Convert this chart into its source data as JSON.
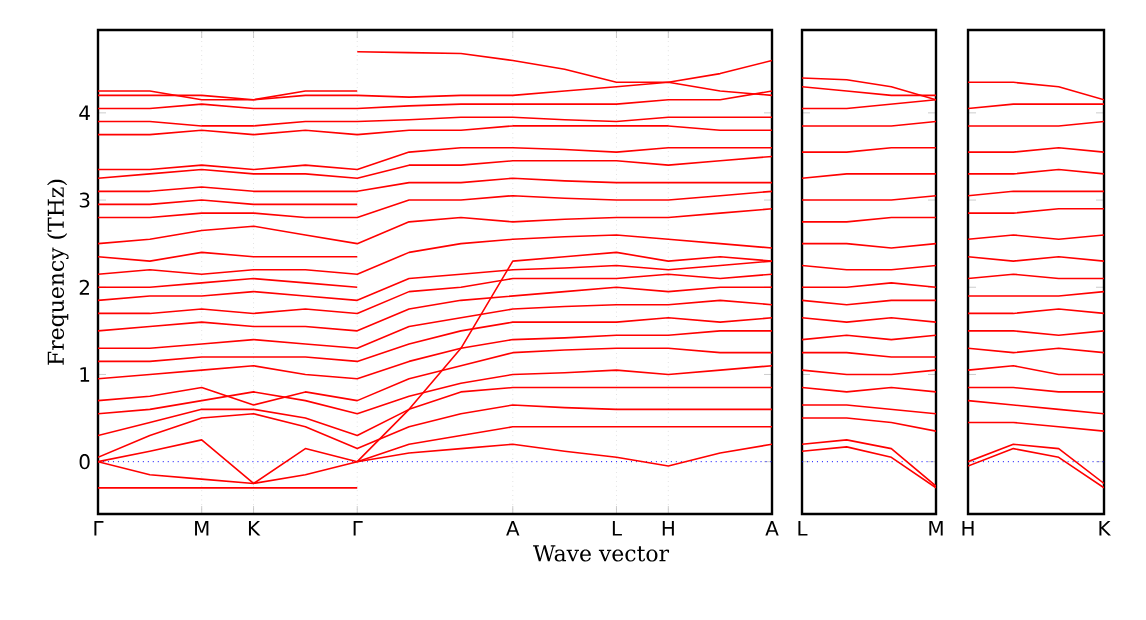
{
  "chart_data": [
    {
      "type": "line",
      "xlabel": "Wave vector",
      "ylabel": "Frequency (THz)",
      "color": "#ff0000",
      "grid": "x",
      "categories": [
        "Γ",
        null,
        "M",
        "K",
        null,
        "Γ",
        null,
        null,
        "A",
        null,
        "L",
        "H",
        null,
        "A"
      ],
      "ylim": [
        -0.6,
        4.95
      ],
      "yticks": [
        0,
        1,
        2,
        3,
        4
      ],
      "ref_lines": [
        {
          "axis": "y",
          "value": 0,
          "color": "#0000ff",
          "line_style": "dotted"
        }
      ],
      "series": [
        {
          "values": [
            -0.3,
            -0.3,
            -0.3,
            -0.3,
            -0.3,
            -0.3,
            null,
            null,
            null,
            null,
            null,
            null,
            null,
            null
          ]
        },
        {
          "values": [
            2.0,
            2.0,
            2.05,
            2.1,
            2.05,
            2.0,
            null,
            null,
            null,
            null,
            null,
            null,
            null,
            null
          ]
        },
        {
          "values": [
            2.35,
            2.3,
            2.4,
            2.35,
            2.35,
            2.35,
            null,
            null,
            null,
            null,
            null,
            null,
            null,
            null
          ]
        },
        {
          "values": [
            2.95,
            2.95,
            3.0,
            2.95,
            2.95,
            2.95,
            null,
            null,
            null,
            null,
            null,
            null,
            null,
            null
          ]
        },
        {
          "values": [
            4.25,
            4.25,
            4.15,
            4.15,
            4.25,
            4.25,
            null,
            null,
            null,
            null,
            null,
            null,
            null,
            null
          ]
        },
        {
          "values": [
            0,
            -0.15,
            -0.2,
            -0.25,
            -0.15,
            0,
            0.1,
            0.15,
            0.2,
            0.12,
            0.05,
            -0.05,
            0.1,
            0.2
          ]
        },
        {
          "values": [
            0,
            0.12,
            0.25,
            -0.25,
            0.15,
            0,
            0.2,
            0.3,
            0.4,
            0.4,
            0.4,
            0.4,
            0.4,
            0.4
          ]
        },
        {
          "values": [
            0.05,
            0.3,
            0.5,
            0.55,
            0.4,
            0.15,
            0.4,
            0.55,
            0.65,
            0.62,
            0.6,
            0.6,
            0.6,
            0.6
          ]
        },
        {
          "values": [
            0.3,
            0.45,
            0.6,
            0.6,
            0.5,
            0.3,
            0.6,
            0.8,
            0.85,
            0.85,
            0.85,
            0.85,
            0.85,
            0.85
          ]
        },
        {
          "values": [
            0.55,
            0.6,
            0.7,
            0.8,
            0.7,
            0.55,
            0.75,
            0.9,
            1.0,
            1.02,
            1.05,
            1.0,
            1.05,
            1.1
          ]
        },
        {
          "values": [
            0.7,
            0.75,
            0.85,
            0.65,
            0.8,
            0.7,
            0.95,
            1.1,
            1.25,
            1.28,
            1.3,
            1.3,
            1.25,
            1.25
          ]
        },
        {
          "values": [
            0.95,
            1.0,
            1.05,
            1.1,
            1.0,
            0.95,
            1.15,
            1.3,
            1.4,
            1.42,
            1.45,
            1.45,
            1.5,
            1.5
          ]
        },
        {
          "values": [
            1.15,
            1.15,
            1.2,
            1.2,
            1.2,
            1.15,
            1.35,
            1.5,
            1.6,
            1.6,
            1.6,
            1.65,
            1.6,
            1.65
          ]
        },
        {
          "values": [
            1.3,
            1.3,
            1.35,
            1.4,
            1.35,
            1.3,
            1.55,
            1.65,
            1.75,
            1.78,
            1.8,
            1.8,
            1.85,
            1.8
          ]
        },
        {
          "values": [
            1.5,
            1.55,
            1.6,
            1.55,
            1.55,
            1.5,
            1.75,
            1.85,
            1.9,
            1.95,
            2.0,
            1.95,
            2.0,
            2.0
          ]
        },
        {
          "values": [
            1.7,
            1.7,
            1.75,
            1.7,
            1.75,
            1.7,
            1.95,
            2.0,
            2.1,
            2.1,
            2.1,
            2.15,
            2.1,
            2.15
          ]
        },
        {
          "values": [
            1.85,
            1.9,
            1.9,
            1.95,
            1.9,
            1.85,
            2.1,
            2.15,
            2.2,
            2.22,
            2.25,
            2.2,
            2.25,
            2.3
          ]
        },
        {
          "values": [
            2.15,
            2.2,
            2.15,
            2.2,
            2.2,
            2.15,
            2.4,
            2.5,
            2.55,
            2.58,
            2.6,
            2.55,
            2.5,
            2.45
          ]
        },
        {
          "values": [
            2.5,
            2.55,
            2.65,
            2.7,
            2.6,
            2.5,
            2.75,
            2.8,
            2.75,
            2.78,
            2.8,
            2.8,
            2.85,
            2.9
          ]
        },
        {
          "values": [
            2.8,
            2.8,
            2.85,
            2.85,
            2.8,
            2.8,
            3.0,
            3.0,
            3.05,
            3.02,
            3.0,
            3.0,
            3.05,
            3.1
          ]
        },
        {
          "values": [
            3.1,
            3.1,
            3.15,
            3.1,
            3.1,
            3.1,
            3.2,
            3.2,
            3.25,
            3.22,
            3.2,
            3.2,
            3.2,
            3.2
          ]
        },
        {
          "values": [
            3.25,
            3.3,
            3.35,
            3.3,
            3.3,
            3.25,
            3.4,
            3.4,
            3.45,
            3.45,
            3.45,
            3.4,
            3.45,
            3.5
          ]
        },
        {
          "values": [
            3.35,
            3.35,
            3.4,
            3.35,
            3.4,
            3.35,
            3.55,
            3.6,
            3.6,
            3.58,
            3.55,
            3.6,
            3.6,
            3.6
          ]
        },
        {
          "values": [
            3.75,
            3.75,
            3.8,
            3.75,
            3.8,
            3.75,
            3.8,
            3.8,
            3.85,
            3.85,
            3.85,
            3.85,
            3.8,
            3.8
          ]
        },
        {
          "values": [
            3.9,
            3.9,
            3.85,
            3.85,
            3.9,
            3.9,
            3.92,
            3.95,
            3.95,
            3.92,
            3.9,
            3.95,
            3.95,
            3.95
          ]
        },
        {
          "values": [
            4.05,
            4.05,
            4.1,
            4.05,
            4.05,
            4.05,
            4.08,
            4.1,
            4.1,
            4.1,
            4.1,
            4.15,
            4.15,
            4.25
          ]
        },
        {
          "values": [
            4.2,
            4.2,
            4.2,
            4.15,
            4.2,
            4.2,
            4.18,
            4.2,
            4.2,
            4.25,
            4.3,
            4.35,
            4.25,
            4.2
          ]
        },
        {
          "values": [
            null,
            null,
            null,
            null,
            null,
            4.7,
            4.69,
            4.68,
            4.6,
            4.5,
            4.35,
            4.35,
            4.45,
            4.6
          ]
        },
        {
          "values": [
            null,
            null,
            null,
            null,
            null,
            0,
            0.6,
            1.3,
            2.3,
            2.35,
            2.4,
            2.3,
            2.35,
            2.3
          ]
        }
      ]
    },
    {
      "type": "line",
      "color": "#ff0000",
      "tick_labels": "x",
      "categories": [
        "L",
        null,
        null,
        "M"
      ],
      "ylim": [
        -0.6,
        4.95
      ],
      "yticks": [
        0,
        1,
        2,
        3,
        4
      ],
      "ref_lines": [
        {
          "axis": "y",
          "value": 0,
          "color": "#0000ff",
          "line_style": "dotted"
        }
      ],
      "series": [
        {
          "values": [
            0.2,
            0.25,
            0.15,
            -0.28
          ]
        },
        {
          "values": [
            0.12,
            0.17,
            0.05,
            -0.3
          ]
        },
        {
          "values": [
            0.5,
            0.5,
            0.45,
            0.35
          ]
        },
        {
          "values": [
            0.65,
            0.65,
            0.6,
            0.55
          ]
        },
        {
          "values": [
            0.85,
            0.8,
            0.85,
            0.8
          ]
        },
        {
          "values": [
            1.05,
            1.0,
            1.0,
            1.05
          ]
        },
        {
          "values": [
            1.25,
            1.25,
            1.2,
            1.2
          ]
        },
        {
          "values": [
            1.4,
            1.45,
            1.4,
            1.45
          ]
        },
        {
          "values": [
            1.65,
            1.6,
            1.65,
            1.6
          ]
        },
        {
          "values": [
            1.85,
            1.8,
            1.85,
            1.85
          ]
        },
        {
          "values": [
            2.0,
            2.0,
            2.05,
            2.0
          ]
        },
        {
          "values": [
            2.25,
            2.2,
            2.2,
            2.25
          ]
        },
        {
          "values": [
            2.5,
            2.5,
            2.45,
            2.5
          ]
        },
        {
          "values": [
            2.75,
            2.75,
            2.8,
            2.8
          ]
        },
        {
          "values": [
            3.0,
            3.0,
            3.0,
            3.05
          ]
        },
        {
          "values": [
            3.25,
            3.3,
            3.3,
            3.3
          ]
        },
        {
          "values": [
            3.55,
            3.55,
            3.6,
            3.6
          ]
        },
        {
          "values": [
            3.85,
            3.85,
            3.85,
            3.9
          ]
        },
        {
          "values": [
            4.05,
            4.05,
            4.1,
            4.15
          ]
        },
        {
          "values": [
            4.4,
            4.38,
            4.3,
            4.15
          ]
        },
        {
          "values": [
            4.3,
            4.25,
            4.2,
            4.2
          ]
        }
      ]
    },
    {
      "type": "line",
      "color": "#ff0000",
      "tick_labels": "x",
      "categories": [
        "H",
        null,
        null,
        "K"
      ],
      "ylim": [
        -0.6,
        4.95
      ],
      "yticks": [
        0,
        1,
        2,
        3,
        4
      ],
      "ref_lines": [
        {
          "axis": "y",
          "value": 0,
          "color": "#0000ff",
          "line_style": "dotted"
        }
      ],
      "series": [
        {
          "values": [
            0,
            0.2,
            0.15,
            -0.25
          ]
        },
        {
          "values": [
            -0.05,
            0.15,
            0.05,
            -0.3
          ]
        },
        {
          "values": [
            0.45,
            0.45,
            0.4,
            0.35
          ]
        },
        {
          "values": [
            0.7,
            0.65,
            0.6,
            0.55
          ]
        },
        {
          "values": [
            0.85,
            0.85,
            0.8,
            0.8
          ]
        },
        {
          "values": [
            1.05,
            1.1,
            1.0,
            1.0
          ]
        },
        {
          "values": [
            1.3,
            1.25,
            1.3,
            1.25
          ]
        },
        {
          "values": [
            1.5,
            1.5,
            1.45,
            1.5
          ]
        },
        {
          "values": [
            1.7,
            1.7,
            1.75,
            1.7
          ]
        },
        {
          "values": [
            1.9,
            1.9,
            1.9,
            1.95
          ]
        },
        {
          "values": [
            2.1,
            2.15,
            2.1,
            2.1
          ]
        },
        {
          "values": [
            2.35,
            2.3,
            2.35,
            2.3
          ]
        },
        {
          "values": [
            2.55,
            2.6,
            2.55,
            2.6
          ]
        },
        {
          "values": [
            2.85,
            2.85,
            2.9,
            2.9
          ]
        },
        {
          "values": [
            3.05,
            3.1,
            3.1,
            3.1
          ]
        },
        {
          "values": [
            3.3,
            3.3,
            3.35,
            3.3
          ]
        },
        {
          "values": [
            3.55,
            3.55,
            3.6,
            3.55
          ]
        },
        {
          "values": [
            3.85,
            3.85,
            3.85,
            3.9
          ]
        },
        {
          "values": [
            4.05,
            4.1,
            4.1,
            4.1
          ]
        },
        {
          "values": [
            4.35,
            4.35,
            4.3,
            4.15
          ]
        }
      ]
    }
  ]
}
